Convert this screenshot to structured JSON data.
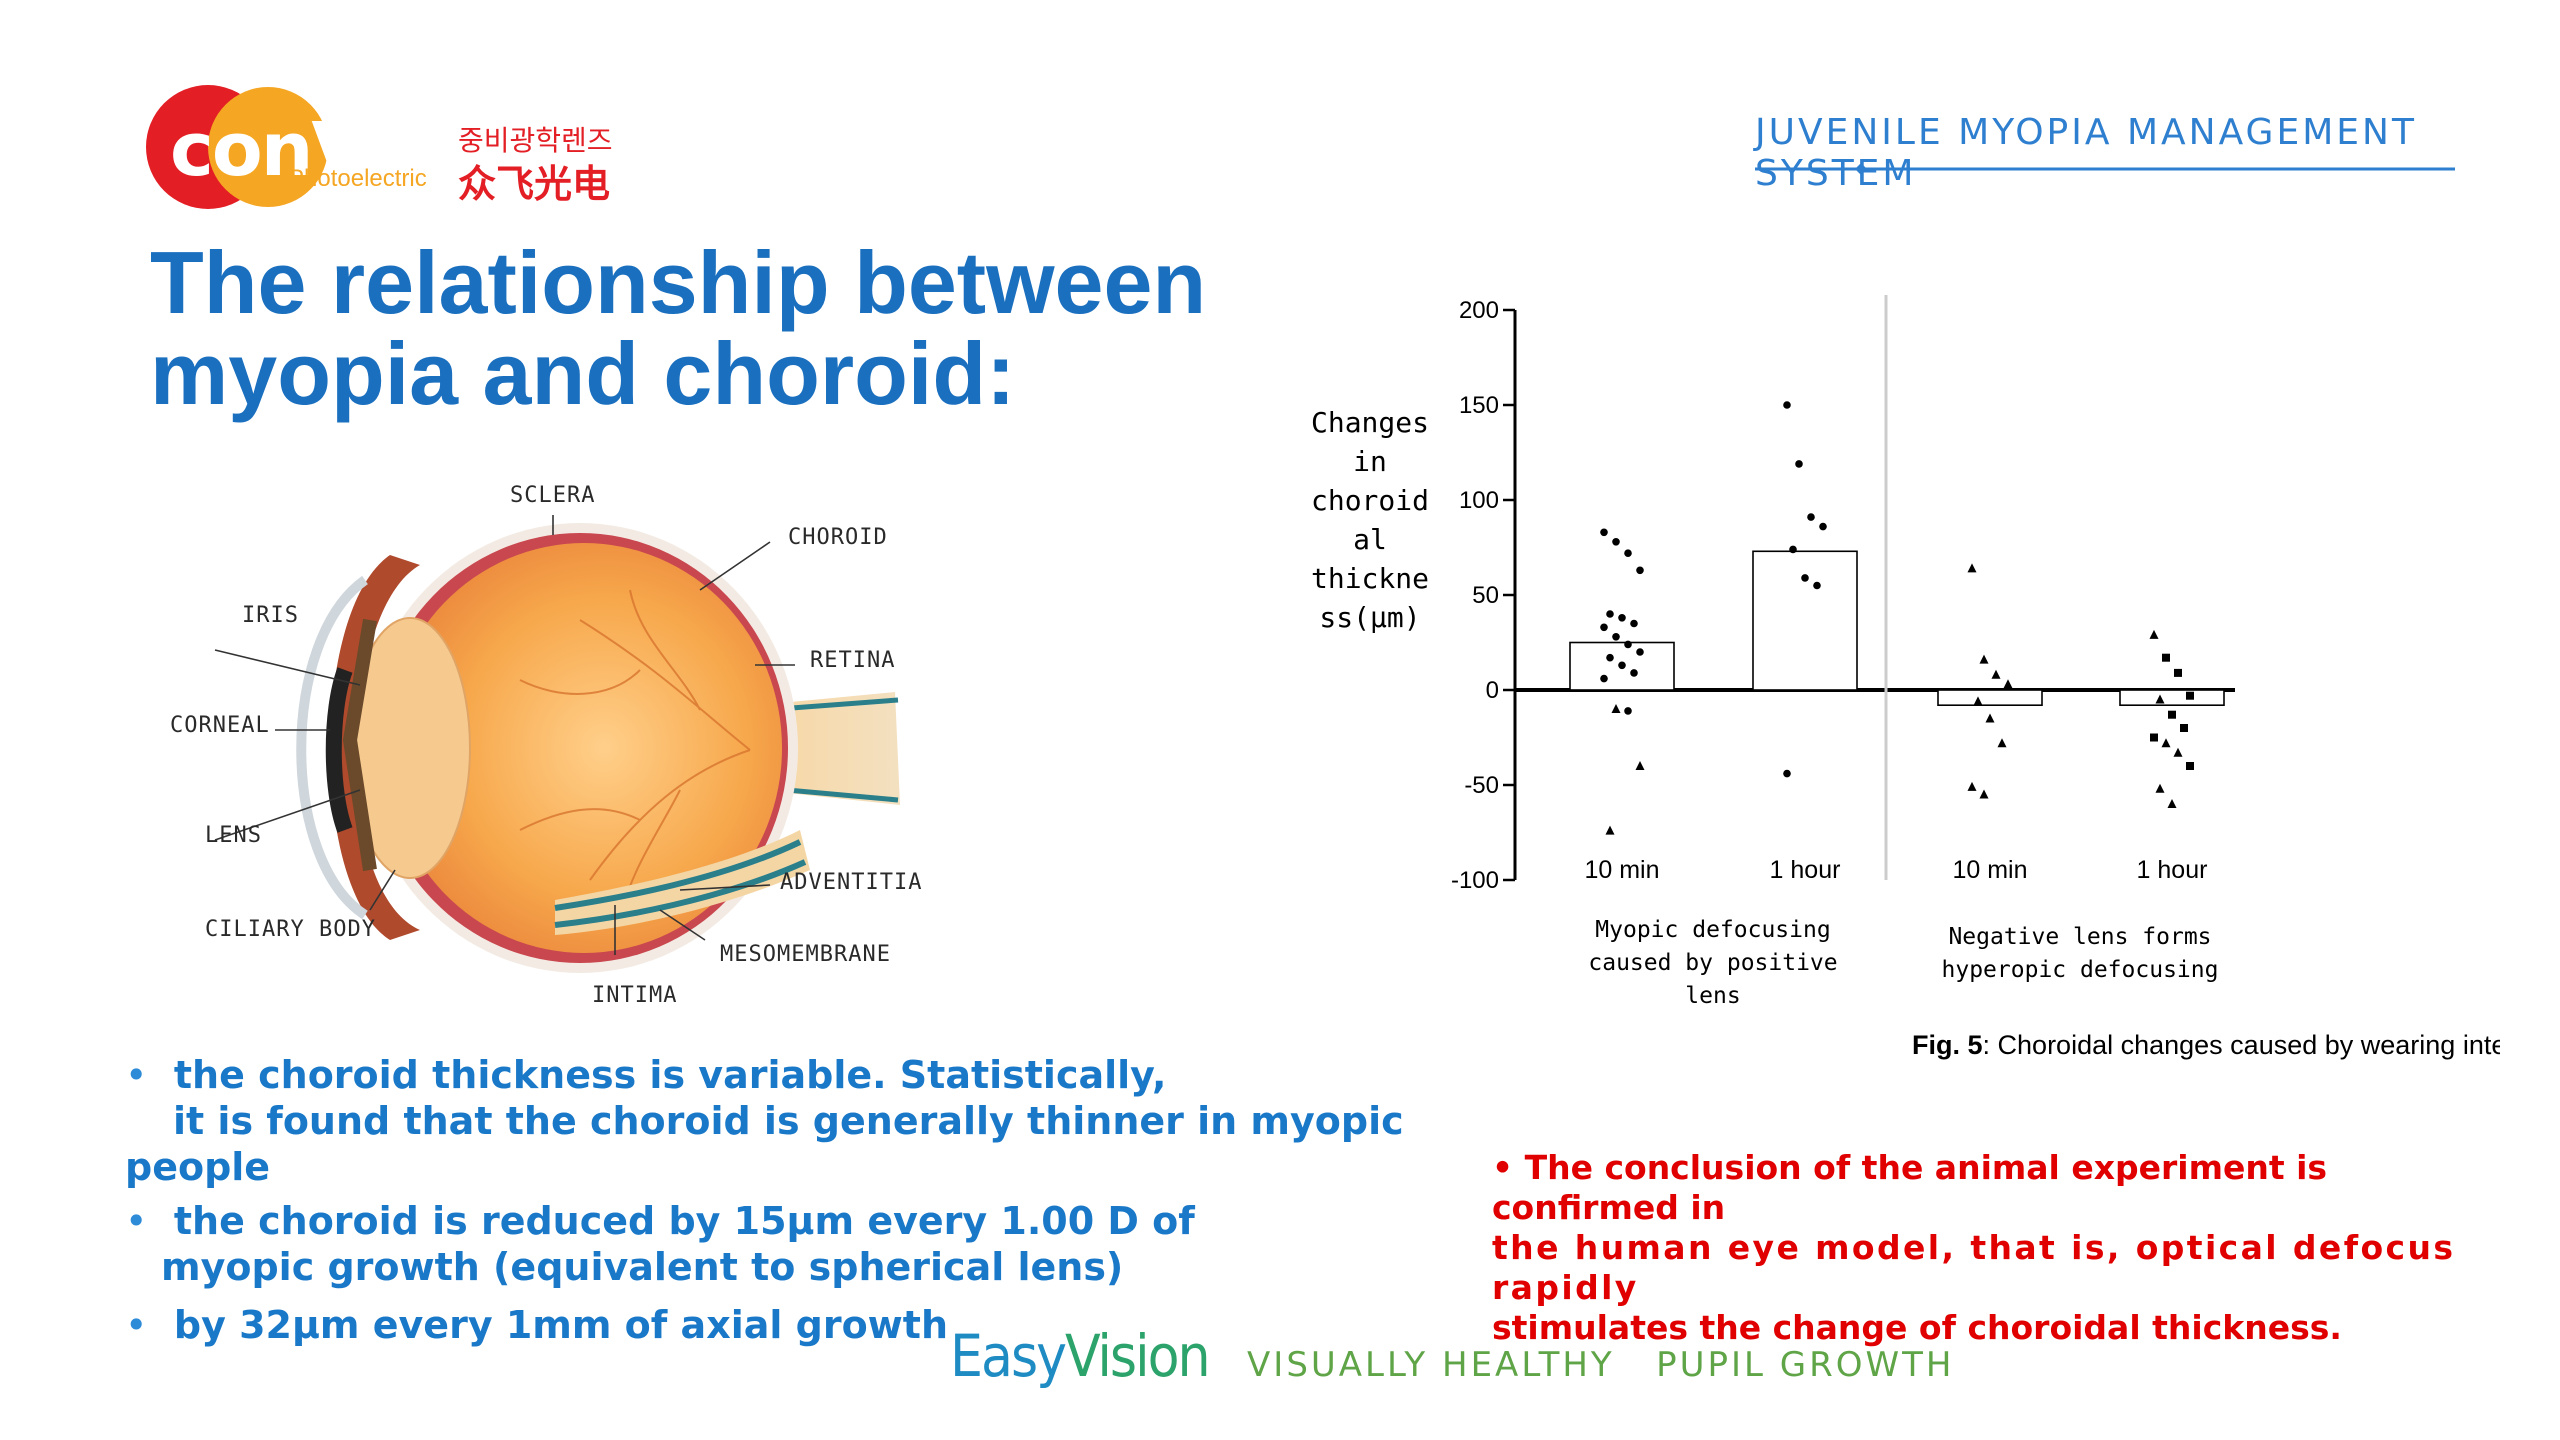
{
  "brand": {
    "logo_word": "conVox",
    "logo_sub": "Photoelectric",
    "logo_korean": "중비광학렌즈",
    "logo_chinese": "众飞光电",
    "header_right": "JUVENILE MYOPIA MANAGEMENT SYSTEM",
    "colors": {
      "blue": "#1a6fbf",
      "red": "#e31e24",
      "orange": "#f5a623",
      "green": "#5fa548"
    }
  },
  "slide": {
    "title_line1": "The relationship between",
    "title_line2": "myopia and choroid:",
    "bullets": [
      {
        "line1": "the choroid thickness is variable. Statistically,",
        "line2": "it is found that the choroid is generally thinner in myopic people"
      },
      {
        "line1": "the choroid is reduced by 15μm every 1.00 D of",
        "line2": "myopic growth (equivalent to spherical lens)"
      },
      {
        "line1": "by 32μm every 1mm of axial growth"
      }
    ],
    "bullet_marker": "•",
    "conclusion": {
      "line1": "• The conclusion of the animal experiment is confirmed in",
      "line2": "the human eye model, that is, optical defocus rapidly",
      "line3": "stimulates the change of choroidal thickness."
    }
  },
  "eye_diagram": {
    "labels": {
      "sclera": "SCLERA",
      "choroid": "CHOROID",
      "iris": "IRIS",
      "retina": "RETINA",
      "cornea": "CORNEAL",
      "lens": "LENS",
      "ciliary": "CILIARY BODY",
      "adventitia": "ADVENTITIA",
      "mesomembrane": "MESOMEMBRANE",
      "intima": "INTIMA"
    }
  },
  "chart_data": {
    "type": "bar",
    "ylabel_lines": [
      "Changes",
      "in",
      "choroid",
      "al",
      "thickne",
      "ss(μm)"
    ],
    "ylim": [
      -100,
      200
    ],
    "yticks": [
      200,
      150,
      100,
      50,
      0,
      -50,
      -100
    ],
    "categories": [
      "10 min",
      "1 hour",
      "10 min",
      "1 hour"
    ],
    "values": [
      25,
      73,
      -8,
      -8
    ],
    "groups": [
      {
        "label_lines": [
          "Myopic defocusing",
          "caused by positive",
          "lens"
        ]
      },
      {
        "label_lines": [
          "Negative lens forms",
          "hyperopic defocusing"
        ]
      }
    ],
    "points": [
      [
        {
          "y": 83,
          "m": "c"
        },
        {
          "y": 78,
          "m": "c"
        },
        {
          "y": 72,
          "m": "c"
        },
        {
          "y": 63,
          "m": "c"
        },
        {
          "y": 40,
          "m": "c"
        },
        {
          "y": 38,
          "m": "c"
        },
        {
          "y": 35,
          "m": "c"
        },
        {
          "y": 33,
          "m": "c"
        },
        {
          "y": 28,
          "m": "c"
        },
        {
          "y": 24,
          "m": "c"
        },
        {
          "y": 20,
          "m": "c"
        },
        {
          "y": 17,
          "m": "c"
        },
        {
          "y": 13,
          "m": "c"
        },
        {
          "y": 9,
          "m": "c"
        },
        {
          "y": 6,
          "m": "c"
        },
        {
          "y": -10,
          "m": "t"
        },
        {
          "y": -11,
          "m": "c"
        },
        {
          "y": -40,
          "m": "t"
        },
        {
          "y": -74,
          "m": "t"
        }
      ],
      [
        {
          "y": 150,
          "m": "c"
        },
        {
          "y": 119,
          "m": "c"
        },
        {
          "y": 91,
          "m": "c"
        },
        {
          "y": 86,
          "m": "c"
        },
        {
          "y": 74,
          "m": "c"
        },
        {
          "y": 59,
          "m": "c"
        },
        {
          "y": 55,
          "m": "c"
        },
        {
          "y": -44,
          "m": "c"
        }
      ],
      [
        {
          "y": 64,
          "m": "t"
        },
        {
          "y": 16,
          "m": "t"
        },
        {
          "y": 8,
          "m": "t"
        },
        {
          "y": 3,
          "m": "t"
        },
        {
          "y": -6,
          "m": "t"
        },
        {
          "y": -15,
          "m": "t"
        },
        {
          "y": -28,
          "m": "t"
        },
        {
          "y": -51,
          "m": "t"
        },
        {
          "y": -55,
          "m": "t"
        }
      ],
      [
        {
          "y": 29,
          "m": "t"
        },
        {
          "y": 17,
          "m": "s"
        },
        {
          "y": 9,
          "m": "s"
        },
        {
          "y": -3,
          "m": "s"
        },
        {
          "y": -5,
          "m": "t"
        },
        {
          "y": -13,
          "m": "s"
        },
        {
          "y": -20,
          "m": "s"
        },
        {
          "y": -25,
          "m": "s"
        },
        {
          "y": -28,
          "m": "t"
        },
        {
          "y": -33,
          "m": "t"
        },
        {
          "y": -40,
          "m": "s"
        },
        {
          "y": -52,
          "m": "t"
        },
        {
          "y": -60,
          "m": "t"
        }
      ]
    ],
    "caption_bold": "Fig. 5",
    "caption_rest": ": Choroidal changes caused by wearing intervention lenses"
  },
  "footer": {
    "brand_easy": "Easy",
    "brand_vision": "Vision",
    "tagline": "VISUALLY HEALTHY   PUPIL GROWTH"
  }
}
